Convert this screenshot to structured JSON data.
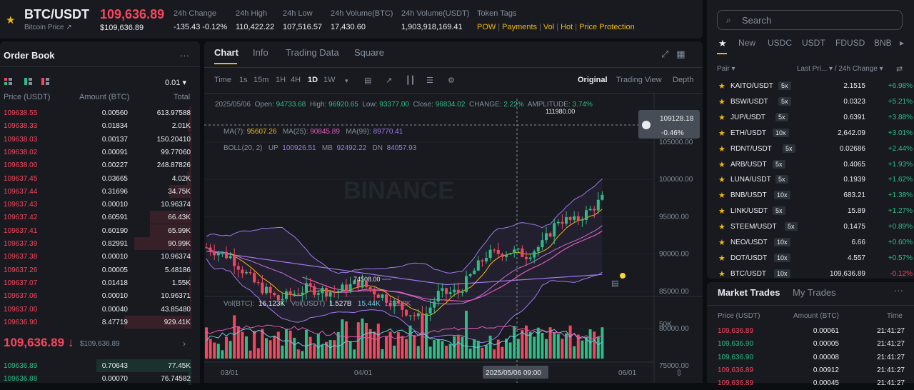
{
  "header": {
    "symbol": "BTC/USDT",
    "subtitle": "Bitcoin Price ↗",
    "last_price": "109,636.89",
    "last_price_usd": "$109,636.89",
    "change_label": "24h Change",
    "change_value": "-135.43 -0.12%",
    "high_label": "24h High",
    "high_value": "110,422.22",
    "low_label": "24h Low",
    "low_value": "107,516.57",
    "volb_label": "24h Volume(BTC)",
    "volb_value": "17,430.60",
    "volu_label": "24h Volume(USDT)",
    "volu_value": "1,903,918,169.41",
    "tags_label": "Token Tags",
    "tags": [
      "POW",
      "Payments",
      "Vol",
      "Hot",
      "Price Protection"
    ]
  },
  "orderbook": {
    "title": "Order Book",
    "menu": "···",
    "precision": "0.01 ▾",
    "col_price": "Price (USDT)",
    "col_amount": "Amount (BTC)",
    "col_total": "Total",
    "asks": [
      [
        "109638.55",
        "0.00560",
        "613.97588",
        3
      ],
      [
        "109638.33",
        "0.01834",
        "2.01K",
        5
      ],
      [
        "109638.03",
        "0.00137",
        "150.20410",
        3
      ],
      [
        "109638.02",
        "0.00091",
        "99.77060",
        2
      ],
      [
        "109638.00",
        "0.00227",
        "248.87826",
        3
      ],
      [
        "109637.45",
        "0.03665",
        "4.02K",
        6
      ],
      [
        "109637.44",
        "0.31696",
        "34.75K",
        33
      ],
      [
        "109637.43",
        "0.00010",
        "10.96374",
        2
      ],
      [
        "109637.42",
        "0.60591",
        "66.43K",
        62
      ],
      [
        "109637.41",
        "0.60190",
        "65.99K",
        62
      ],
      [
        "109637.39",
        "0.82991",
        "90.99K",
        85
      ],
      [
        "109637.38",
        "0.00010",
        "10.96374",
        2
      ],
      [
        "109637.26",
        "0.00005",
        "5.48186",
        1
      ],
      [
        "109637.07",
        "0.01418",
        "1.55K",
        4
      ],
      [
        "109637.06",
        "0.00010",
        "10.96371",
        2
      ],
      [
        "109637.00",
        "0.00040",
        "43.85480",
        2
      ],
      [
        "109636.90",
        "8.47719",
        "929.41K",
        100
      ]
    ],
    "mid_price": "109,636.89",
    "mid_arrow": "↓",
    "mid_usd": "$109,636.89",
    "more": "›",
    "bids": [
      [
        "109636.89",
        "0.70643",
        "77.45K",
        70
      ],
      [
        "109636.88",
        "0.00070",
        "76.74582",
        2
      ]
    ]
  },
  "chart": {
    "tabs": [
      "Chart",
      "Info",
      "Trading Data",
      "Square"
    ],
    "toolbar": [
      "Time",
      "1s",
      "15m",
      "1H",
      "4H",
      "1D",
      "1W",
      "▾"
    ],
    "toolbar_right": [
      "Original",
      "Trading View",
      "Depth"
    ],
    "info_line": "2025/05/06  Open: 94733.68  High: 96920.65  Low: 93377.00  Close: 96834.02  CHANGE: 2.22%  AMPLITUDE: 3.74%",
    "info_date": "2025/05/06",
    "info_open_label": "Open:",
    "info_open": "94733.68",
    "info_high_label": "High:",
    "info_high": "96920.65",
    "info_low_label": "Low:",
    "info_low": "93377.00",
    "info_close_label": "Close:",
    "info_close": "96834.02",
    "info_change_label": "CHANGE:",
    "info_change": "2.22%",
    "info_amp_label": "AMPLITUDE:",
    "info_amp": "3.74%",
    "ma7_label": "MA(7):",
    "ma7": "95607.26",
    "ma25_label": "MA(25):",
    "ma25": "90845.89",
    "ma99_label": "MA(99):",
    "ma99": "89770.41",
    "boll_label": "BOLL(20, 2)",
    "up_label": "UP",
    "up": "100926.51",
    "mb_label": "MB",
    "mb": "92492.22",
    "dn_label": "DN",
    "dn": "84057.93",
    "price_badge": "109128.18",
    "price_badge_pct": "-0.46%",
    "max_label": "111980.00",
    "min_label": "74508.00",
    "yticks": [
      "105000.00",
      "100000.00",
      "95000.00",
      "90000.00",
      "85000.00",
      "80000.00",
      "75000.00"
    ],
    "vol_label": "Vol(BTC):",
    "vol_btc": "16.123K",
    "vol_usdt_label": "Vol(USDT)",
    "vol_usdt": "1.527B",
    "vol_ma1": "15.44K",
    "vol_ma2": "17.298K",
    "vol_tick": "50K",
    "xticks": [
      "03/01",
      "04/01",
      "06/01"
    ],
    "cross_date": "2025/05/06 09:00",
    "watermark": "BINANCE"
  },
  "markets": {
    "search_placeholder": "Search",
    "tabs": [
      "New",
      "USDC",
      "USDT",
      "FDUSD",
      "BNB"
    ],
    "col_pair": "Pair ▾",
    "col_last": "Last Pri... ▾ / 24h Change ▾",
    "rows": [
      [
        "KAITO/USDT",
        "5x",
        "2.1515",
        "+6.98%"
      ],
      [
        "BSW/USDT",
        "5x",
        "0.0323",
        "+5.21%"
      ],
      [
        "JUP/USDT",
        "5x",
        "0.6391",
        "+3.88%"
      ],
      [
        "ETH/USDT",
        "10x",
        "2,642.09",
        "+3.01%"
      ],
      [
        "RDNT/USDT",
        "5x",
        "0.02686",
        "+2.44%"
      ],
      [
        "ARB/USDT",
        "5x",
        "0.4065",
        "+1.93%"
      ],
      [
        "LUNA/USDT",
        "5x",
        "0.1939",
        "+1.62%"
      ],
      [
        "BNB/USDT",
        "10x",
        "683.21",
        "+1.38%"
      ],
      [
        "LINK/USDT",
        "5x",
        "15.89",
        "+1.27%"
      ],
      [
        "STEEM/USDT",
        "5x",
        "0.1475",
        "+0.89%"
      ],
      [
        "NEO/USDT",
        "10x",
        "6.66",
        "+0.60%"
      ],
      [
        "DOT/USDT",
        "10x",
        "4.557",
        "+0.57%"
      ],
      [
        "BTC/USDT",
        "10x",
        "109,636.89",
        "-0.12%"
      ]
    ]
  },
  "trades": {
    "tab1": "Market Trades",
    "tab2": "My Trades",
    "menu": "···",
    "col_price": "Price (USDT)",
    "col_amount": "Amount (BTC)",
    "col_time": "Time",
    "rows": [
      [
        "109,636.89",
        "0.00061",
        "21:41:27",
        "r"
      ],
      [
        "109,636.90",
        "0.00005",
        "21:41:27",
        "g"
      ],
      [
        "109,636.90",
        "0.00008",
        "21:41:27",
        "g"
      ],
      [
        "109,636.89",
        "0.00912",
        "21:41:27",
        "r"
      ],
      [
        "109,636.89",
        "0.00045",
        "21:41:27",
        "r"
      ]
    ]
  }
}
